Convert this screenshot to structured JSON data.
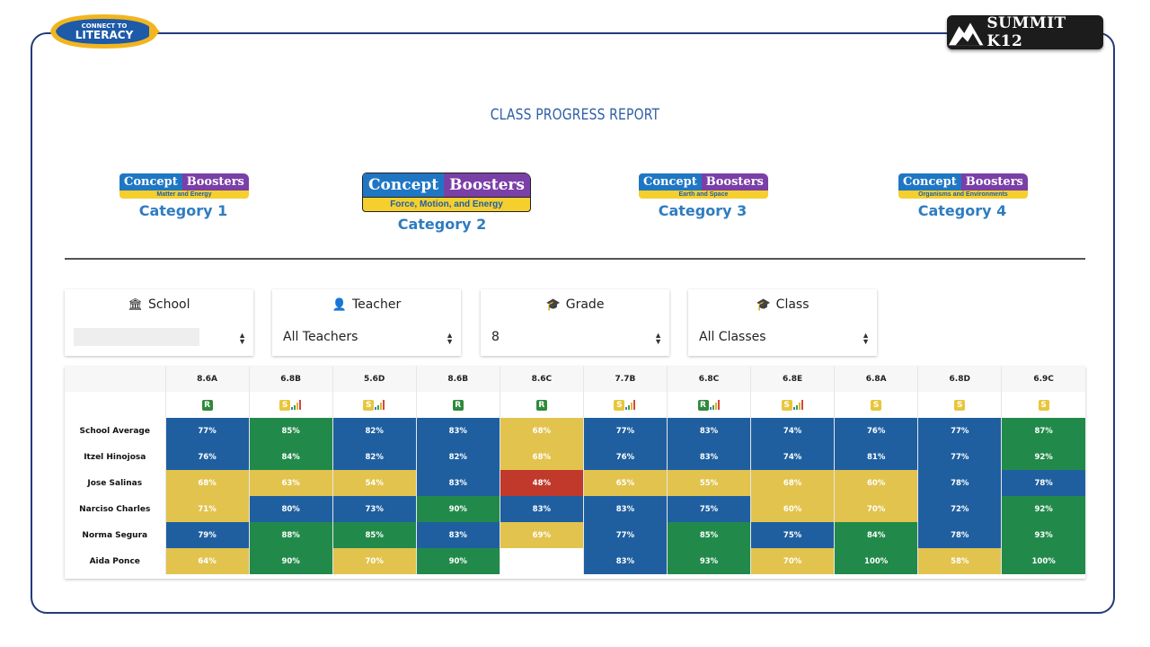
{
  "branding": {
    "left_small": "CONNECT TO",
    "left_big": "LITERACY",
    "right": "SUMMIT K12"
  },
  "title": "CLASS PROGRESS REPORT",
  "categories": [
    {
      "word1": "Concept",
      "word2": "Boosters",
      "subtitle": "Matter and Energy",
      "label": "Category 1"
    },
    {
      "word1": "Concept",
      "word2": "Boosters",
      "subtitle": "Force, Motion, and Energy",
      "label": "Category 2"
    },
    {
      "word1": "Concept",
      "word2": "Boosters",
      "subtitle": "Earth and Space",
      "label": "Category 3"
    },
    {
      "word1": "Concept",
      "word2": "Boosters",
      "subtitle": "Organisms and Environments",
      "label": "Category 4"
    }
  ],
  "filters": {
    "school": {
      "label": "School",
      "value": ""
    },
    "teacher": {
      "label": "Teacher",
      "value": "All Teachers"
    },
    "grade": {
      "label": "Grade",
      "value": "8"
    },
    "class": {
      "label": "Class",
      "value": "All Classes"
    }
  },
  "colors": {
    "blue": "#1f5fa0",
    "green": "#218a4a",
    "yellow": "#e2c34e",
    "red": "#c0392b",
    "empty": "#ffffff"
  },
  "table": {
    "columns": [
      "8.6A",
      "6.8B",
      "5.6D",
      "8.6B",
      "8.6C",
      "7.7B",
      "6.8C",
      "6.8E",
      "6.8A",
      "6.8D",
      "6.9C"
    ],
    "column_icons": [
      "R",
      "S-bars",
      "S-bars",
      "R",
      "R",
      "S-bars",
      "R-bars",
      "S-bars",
      "S",
      "S",
      "S"
    ],
    "rows": [
      {
        "name": "School Average",
        "cells": [
          {
            "v": "77%",
            "c": "blue"
          },
          {
            "v": "85%",
            "c": "green"
          },
          {
            "v": "82%",
            "c": "blue"
          },
          {
            "v": "83%",
            "c": "blue"
          },
          {
            "v": "68%",
            "c": "yellow"
          },
          {
            "v": "77%",
            "c": "blue"
          },
          {
            "v": "83%",
            "c": "blue"
          },
          {
            "v": "74%",
            "c": "blue"
          },
          {
            "v": "76%",
            "c": "blue"
          },
          {
            "v": "77%",
            "c": "blue"
          },
          {
            "v": "87%",
            "c": "green"
          }
        ]
      },
      {
        "name": "Itzel Hinojosa",
        "cells": [
          {
            "v": "76%",
            "c": "blue"
          },
          {
            "v": "84%",
            "c": "green"
          },
          {
            "v": "82%",
            "c": "blue"
          },
          {
            "v": "82%",
            "c": "blue"
          },
          {
            "v": "68%",
            "c": "yellow"
          },
          {
            "v": "76%",
            "c": "blue"
          },
          {
            "v": "83%",
            "c": "blue"
          },
          {
            "v": "74%",
            "c": "blue"
          },
          {
            "v": "81%",
            "c": "blue"
          },
          {
            "v": "77%",
            "c": "blue"
          },
          {
            "v": "92%",
            "c": "green"
          }
        ]
      },
      {
        "name": "Jose Salinas",
        "cells": [
          {
            "v": "68%",
            "c": "yellow"
          },
          {
            "v": "63%",
            "c": "yellow"
          },
          {
            "v": "54%",
            "c": "yellow"
          },
          {
            "v": "83%",
            "c": "blue"
          },
          {
            "v": "48%",
            "c": "red"
          },
          {
            "v": "65%",
            "c": "yellow"
          },
          {
            "v": "55%",
            "c": "yellow"
          },
          {
            "v": "68%",
            "c": "yellow"
          },
          {
            "v": "60%",
            "c": "yellow"
          },
          {
            "v": "78%",
            "c": "blue"
          },
          {
            "v": "78%",
            "c": "blue"
          }
        ]
      },
      {
        "name": "Narciso Charles",
        "cells": [
          {
            "v": "71%",
            "c": "yellow"
          },
          {
            "v": "80%",
            "c": "blue"
          },
          {
            "v": "73%",
            "c": "blue"
          },
          {
            "v": "90%",
            "c": "green"
          },
          {
            "v": "83%",
            "c": "blue"
          },
          {
            "v": "83%",
            "c": "blue"
          },
          {
            "v": "75%",
            "c": "blue"
          },
          {
            "v": "60%",
            "c": "yellow"
          },
          {
            "v": "70%",
            "c": "yellow"
          },
          {
            "v": "72%",
            "c": "blue"
          },
          {
            "v": "92%",
            "c": "green"
          }
        ]
      },
      {
        "name": "Norma Segura",
        "cells": [
          {
            "v": "79%",
            "c": "blue"
          },
          {
            "v": "88%",
            "c": "green"
          },
          {
            "v": "85%",
            "c": "green"
          },
          {
            "v": "83%",
            "c": "blue"
          },
          {
            "v": "69%",
            "c": "yellow"
          },
          {
            "v": "77%",
            "c": "blue"
          },
          {
            "v": "85%",
            "c": "green"
          },
          {
            "v": "75%",
            "c": "blue"
          },
          {
            "v": "84%",
            "c": "green"
          },
          {
            "v": "78%",
            "c": "blue"
          },
          {
            "v": "93%",
            "c": "green"
          }
        ]
      },
      {
        "name": "Aida Ponce",
        "cells": [
          {
            "v": "64%",
            "c": "yellow"
          },
          {
            "v": "90%",
            "c": "green"
          },
          {
            "v": "70%",
            "c": "yellow"
          },
          {
            "v": "90%",
            "c": "green"
          },
          {
            "v": "",
            "c": "empty"
          },
          {
            "v": "83%",
            "c": "blue"
          },
          {
            "v": "93%",
            "c": "green"
          },
          {
            "v": "70%",
            "c": "yellow"
          },
          {
            "v": "100%",
            "c": "green"
          },
          {
            "v": "58%",
            "c": "yellow"
          },
          {
            "v": "100%",
            "c": "green"
          }
        ]
      }
    ]
  }
}
